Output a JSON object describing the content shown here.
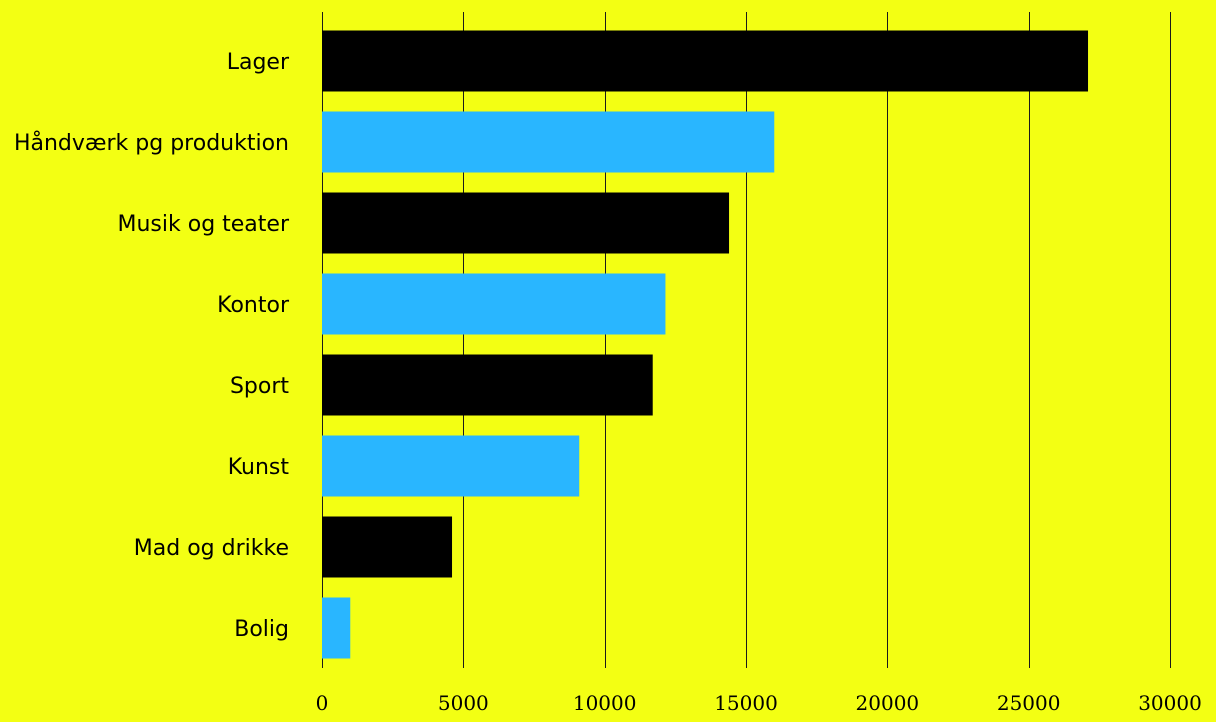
{
  "chart_data": {
    "type": "bar",
    "orientation": "horizontal",
    "title": "",
    "xlabel": "",
    "ylabel": "",
    "categories": [
      "Lager",
      "Håndværk pg produktion",
      "Musik og teater",
      "Kontor",
      "Sport",
      "Kunst",
      "Mad og drikke",
      "Bolig"
    ],
    "values": [
      27100,
      16000,
      14400,
      12150,
      11700,
      9100,
      4600,
      1000
    ],
    "bar_colors": [
      "#000000",
      "#29b6ff",
      "#000000",
      "#29b6ff",
      "#000000",
      "#29b6ff",
      "#000000",
      "#29b6ff"
    ],
    "xlim": [
      0,
      30000
    ],
    "x_ticks": [
      0,
      5000,
      10000,
      15000,
      20000,
      25000,
      30000
    ],
    "x_tick_labels": [
      "0",
      "5000",
      "10000",
      "15000",
      "20000",
      "25000",
      "30000"
    ],
    "grid": "vertical",
    "legend": "none"
  },
  "colors": {
    "background": "#f3ff13",
    "bar_primary": "#000000",
    "bar_secondary": "#29b6ff",
    "gridline": "#1a1a1a"
  }
}
